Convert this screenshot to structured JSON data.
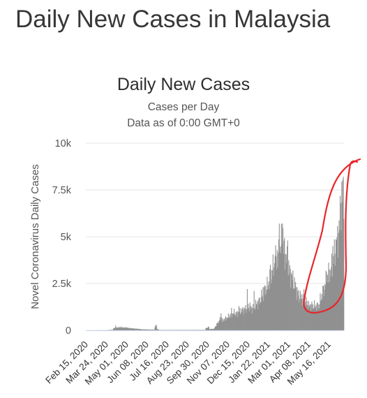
{
  "page": {
    "heading": "Daily New Cases in Malaysia"
  },
  "chart_data": {
    "type": "bar",
    "title": "Daily New Cases",
    "subtitle_lines": [
      "Cases per Day",
      "Data as of 0:00 GMT+0"
    ],
    "ylabel": "Novel Coronavirus Daily Cases",
    "xlabel": "",
    "ylim": [
      0,
      10000
    ],
    "yticks": [
      0,
      2500,
      5000,
      7500,
      10000
    ],
    "ytick_labels": [
      "0",
      "2.5k",
      "5k",
      "7.5k",
      "10k"
    ],
    "x_tick_labels": [
      "Feb 15, 2020",
      "Mar 24, 2020",
      "May 01, 2020",
      "Jun 08, 2020",
      "Jul 16, 2020",
      "Aug 23, 2020",
      "Sep 30, 2020",
      "Nov 07, 2020",
      "Dec 15, 2020",
      "Jan 22, 2021",
      "Mar 01, 2021",
      "Apr 08, 2021",
      "May 16, 2021"
    ],
    "grid": true,
    "bar_color": "#909090",
    "annotation_color": "#e8262a",
    "date_range": [
      "2020-01-22",
      "2021-05-27"
    ],
    "ranges": [
      {
        "from": "2020-01-22",
        "to": "2020-02-29",
        "start": 1,
        "end": 3
      },
      {
        "from": "2020-03-01",
        "to": "2020-03-13",
        "start": 5,
        "end": 30
      },
      {
        "from": "2020-03-14",
        "to": "2020-03-22",
        "start": 100,
        "end": 150
      },
      {
        "from": "2020-03-23",
        "to": "2020-04-10",
        "start": 150,
        "end": 140
      },
      {
        "from": "2020-04-11",
        "to": "2020-05-05",
        "start": 120,
        "end": 60
      },
      {
        "from": "2020-05-06",
        "to": "2020-05-31",
        "start": 50,
        "end": 30
      },
      {
        "from": "2020-06-01",
        "to": "2020-06-04",
        "start": 180,
        "end": 220
      },
      {
        "from": "2020-06-05",
        "to": "2020-06-08",
        "start": 80,
        "end": 40
      },
      {
        "from": "2020-06-09",
        "to": "2020-09-05",
        "start": 15,
        "end": 20
      },
      {
        "from": "2020-09-06",
        "to": "2020-09-12",
        "start": 100,
        "end": 180
      },
      {
        "from": "2020-09-13",
        "to": "2020-09-22",
        "start": 60,
        "end": 80
      },
      {
        "from": "2020-09-23",
        "to": "2020-10-06",
        "start": 150,
        "end": 700
      },
      {
        "from": "2020-10-07",
        "to": "2020-10-31",
        "start": 500,
        "end": 950
      },
      {
        "from": "2020-11-01",
        "to": "2020-11-30",
        "start": 850,
        "end": 1300
      },
      {
        "from": "2020-12-01",
        "to": "2020-12-15",
        "start": 1100,
        "end": 1500
      },
      {
        "from": "2020-12-16",
        "to": "2020-12-31",
        "start": 1500,
        "end": 2300
      },
      {
        "from": "2021-01-01",
        "to": "2021-01-20",
        "start": 2300,
        "end": 4000
      },
      {
        "from": "2021-01-21",
        "to": "2021-01-31",
        "start": 3800,
        "end": 5000
      },
      {
        "from": "2021-02-01",
        "to": "2021-02-14",
        "start": 4500,
        "end": 3000
      },
      {
        "from": "2021-02-15",
        "to": "2021-02-28",
        "start": 3000,
        "end": 2000
      },
      {
        "from": "2021-03-01",
        "to": "2021-03-20",
        "start": 1900,
        "end": 1400
      },
      {
        "from": "2021-03-21",
        "to": "2021-04-10",
        "start": 1300,
        "end": 1300
      },
      {
        "from": "2021-04-11",
        "to": "2021-04-30",
        "start": 1500,
        "end": 3200
      },
      {
        "from": "2021-05-01",
        "to": "2021-05-15",
        "start": 3000,
        "end": 4800
      },
      {
        "from": "2021-05-16",
        "to": "2021-05-22",
        "start": 5000,
        "end": 6500
      },
      {
        "from": "2021-05-23",
        "to": "2021-05-27",
        "start": 7000,
        "end": 7900
      }
    ],
    "spikes": [
      {
        "date": "2020-03-18",
        "value": 250
      },
      {
        "date": "2020-03-28",
        "value": 200
      },
      {
        "date": "2020-06-02",
        "value": 270
      },
      {
        "date": "2020-06-04",
        "value": 280
      },
      {
        "date": "2020-10-05",
        "value": 900
      },
      {
        "date": "2020-10-25",
        "value": 1200
      },
      {
        "date": "2020-11-08",
        "value": 1300
      },
      {
        "date": "2020-11-24",
        "value": 2200
      },
      {
        "date": "2020-12-07",
        "value": 2100
      },
      {
        "date": "2020-12-24",
        "value": 2300
      },
      {
        "date": "2020-12-27",
        "value": 2400
      },
      {
        "date": "2021-01-07",
        "value": 3500
      },
      {
        "date": "2021-01-16",
        "value": 4000
      },
      {
        "date": "2021-01-24",
        "value": 5700
      },
      {
        "date": "2021-01-30",
        "value": 5700
      },
      {
        "date": "2021-02-09",
        "value": 4800
      },
      {
        "date": "2021-03-12",
        "value": 2200
      },
      {
        "date": "2021-04-24",
        "value": 3100
      },
      {
        "date": "2021-05-06",
        "value": 4500
      },
      {
        "date": "2021-05-13",
        "value": 4800
      },
      {
        "date": "2021-05-21",
        "value": 6800
      },
      {
        "date": "2021-05-26",
        "value": 8200
      }
    ]
  }
}
